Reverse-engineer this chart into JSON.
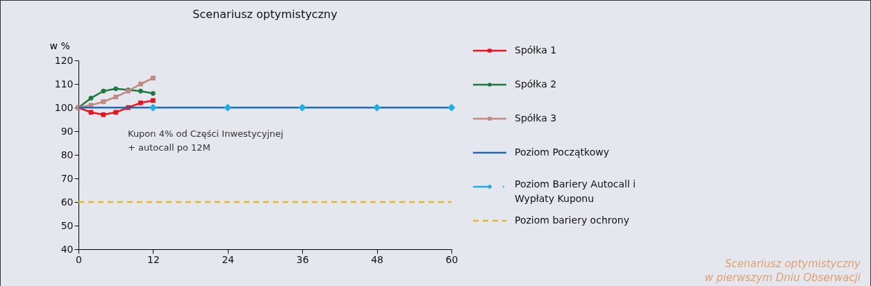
{
  "chart_data": {
    "type": "line",
    "title": "Scenariusz optymistyczny",
    "ylabel": "w %",
    "xlim": [
      0,
      60
    ],
    "xticks": [
      0,
      12,
      24,
      36,
      48,
      60
    ],
    "ylim": [
      40,
      120
    ],
    "yticks": [
      40,
      50,
      60,
      70,
      80,
      90,
      100,
      110,
      120
    ],
    "grid": false,
    "legend": "right",
    "annotations": [
      "Kupon 4% od Części Inwestycyjnej + autocall po 12M",
      "Scenariusz optymistyczny w pierwszym Dniu Obserwacji"
    ],
    "series": [
      {
        "name": "Spółka 1",
        "color": "#e8141c",
        "marker": "square",
        "x": [
          0,
          2,
          4,
          6,
          8,
          10,
          12
        ],
        "values": [
          100,
          98,
          97,
          98,
          100,
          102,
          103
        ]
      },
      {
        "name": "Spółka 2",
        "color": "#1f7a3e",
        "marker": "circle",
        "x": [
          0,
          2,
          4,
          6,
          8,
          10,
          12
        ],
        "values": [
          100,
          104,
          107,
          108,
          107.5,
          107,
          106
        ]
      },
      {
        "name": "Spółka 3",
        "color": "#c08a80",
        "marker": "square",
        "x": [
          0,
          2,
          4,
          6,
          8,
          10,
          12
        ],
        "values": [
          100,
          101,
          102.5,
          104.5,
          107,
          110,
          112.5
        ]
      },
      {
        "name": "Poziom Początkowy",
        "color": "#1e6ab0",
        "marker": "none",
        "x": [
          0,
          60
        ],
        "values": [
          100,
          100
        ]
      },
      {
        "name": "Poziom Bariery Autocall i Wypłaty Kuponu",
        "type": "scatter",
        "color": "#1bb0e8",
        "marker": "diamond",
        "x": [
          12,
          24,
          36,
          48,
          60
        ],
        "values": [
          100,
          100,
          100,
          100,
          100
        ]
      },
      {
        "name": "Poziom bariery ochrony",
        "color": "#e8b820",
        "marker": "none",
        "line_style": "dashed",
        "x": [
          0,
          60
        ],
        "values": [
          60,
          60
        ]
      }
    ]
  }
}
